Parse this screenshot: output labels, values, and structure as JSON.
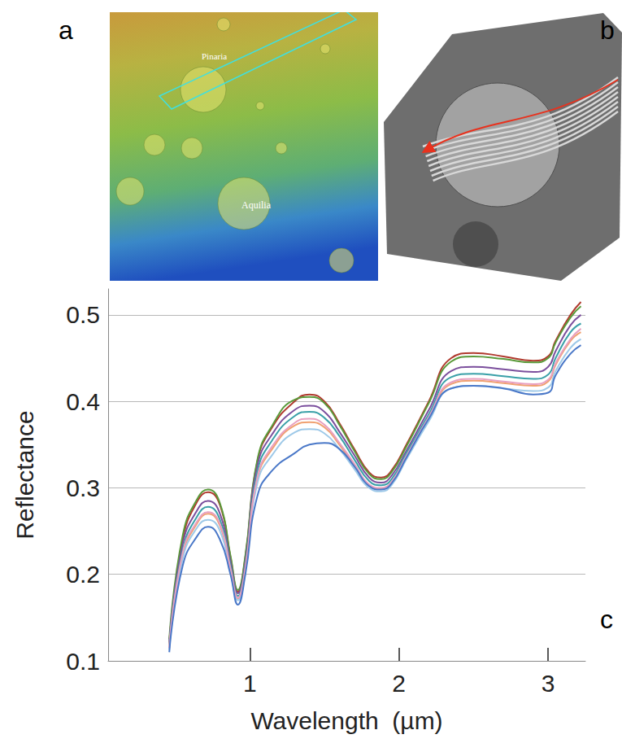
{
  "panels": {
    "a": {
      "label": "a",
      "annotations": [
        "Pinaria",
        "Aquilia"
      ]
    },
    "b": {
      "label": "b"
    }
  },
  "chart_data": {
    "type": "line",
    "panel_label": "c",
    "x_label": "Wavelength  (µm)",
    "y_label": "Reflectance",
    "x": [
      0.46,
      0.55,
      0.65,
      0.72,
      0.8,
      0.87,
      0.92,
      0.97,
      1.05,
      1.15,
      1.3,
      1.4,
      1.5,
      1.6,
      1.7,
      1.8,
      1.88,
      1.95,
      2.05,
      2.2,
      2.35,
      2.5,
      2.7,
      2.9,
      3.0,
      3.05,
      3.15,
      3.22
    ],
    "series": [
      {
        "color": "#b03a2e",
        "values": [
          0.12,
          0.24,
          0.285,
          0.295,
          0.28,
          0.22,
          0.18,
          0.22,
          0.33,
          0.37,
          0.4,
          0.408,
          0.4,
          0.375,
          0.345,
          0.318,
          0.312,
          0.32,
          0.35,
          0.4,
          0.45,
          0.456,
          0.452,
          0.447,
          0.452,
          0.47,
          0.5,
          0.515
        ]
      },
      {
        "color": "#5a9a3a",
        "values": [
          0.125,
          0.245,
          0.288,
          0.298,
          0.282,
          0.222,
          0.182,
          0.222,
          0.332,
          0.372,
          0.402,
          0.405,
          0.398,
          0.373,
          0.343,
          0.316,
          0.31,
          0.318,
          0.348,
          0.398,
          0.446,
          0.452,
          0.449,
          0.445,
          0.45,
          0.468,
          0.497,
          0.51
        ]
      },
      {
        "color": "#7b4f9d",
        "values": [
          0.12,
          0.235,
          0.275,
          0.285,
          0.27,
          0.215,
          0.178,
          0.215,
          0.325,
          0.362,
          0.39,
          0.395,
          0.388,
          0.365,
          0.338,
          0.312,
          0.306,
          0.314,
          0.343,
          0.39,
          0.435,
          0.44,
          0.437,
          0.434,
          0.44,
          0.458,
          0.488,
          0.5
        ]
      },
      {
        "color": "#3aa0a8",
        "values": [
          0.118,
          0.228,
          0.268,
          0.278,
          0.263,
          0.21,
          0.175,
          0.21,
          0.318,
          0.355,
          0.383,
          0.388,
          0.381,
          0.36,
          0.333,
          0.308,
          0.303,
          0.31,
          0.34,
          0.385,
          0.428,
          0.432,
          0.429,
          0.426,
          0.431,
          0.45,
          0.48,
          0.49
        ]
      },
      {
        "color": "#f0a070",
        "values": [
          0.115,
          0.222,
          0.26,
          0.27,
          0.256,
          0.205,
          0.172,
          0.206,
          0.31,
          0.345,
          0.372,
          0.376,
          0.37,
          0.35,
          0.326,
          0.303,
          0.299,
          0.306,
          0.336,
          0.38,
          0.42,
          0.424,
          0.421,
          0.418,
          0.423,
          0.442,
          0.47,
          0.48
        ]
      },
      {
        "color": "#9ec9e8",
        "values": [
          0.113,
          0.218,
          0.255,
          0.263,
          0.25,
          0.202,
          0.17,
          0.203,
          0.305,
          0.338,
          0.364,
          0.368,
          0.363,
          0.345,
          0.322,
          0.3,
          0.296,
          0.303,
          0.333,
          0.377,
          0.415,
          0.418,
          0.415,
          0.412,
          0.416,
          0.435,
          0.462,
          0.472
        ]
      },
      {
        "color": "#e8a0c0",
        "values": [
          0.115,
          0.225,
          0.262,
          0.272,
          0.258,
          0.207,
          0.173,
          0.207,
          0.312,
          0.348,
          0.375,
          0.38,
          0.373,
          0.352,
          0.328,
          0.304,
          0.3,
          0.307,
          0.337,
          0.382,
          0.422,
          0.426,
          0.423,
          0.42,
          0.425,
          0.444,
          0.472,
          0.484
        ]
      },
      {
        "color": "#4a78c8",
        "values": [
          0.11,
          0.21,
          0.245,
          0.255,
          0.24,
          0.2,
          0.165,
          0.2,
          0.29,
          0.32,
          0.34,
          0.35,
          0.352,
          0.345,
          0.325,
          0.302,
          0.298,
          0.305,
          0.335,
          0.38,
          0.415,
          0.418,
          0.415,
          0.408,
          0.41,
          0.43,
          0.455,
          0.465
        ]
      }
    ],
    "xlim": [
      0.05,
      3.25
    ],
    "ylim": [
      0.1,
      0.53
    ],
    "xticks": [
      1,
      2,
      3
    ],
    "yticks": [
      0.1,
      0.2,
      0.3,
      0.4,
      0.5
    ],
    "grid": true
  }
}
